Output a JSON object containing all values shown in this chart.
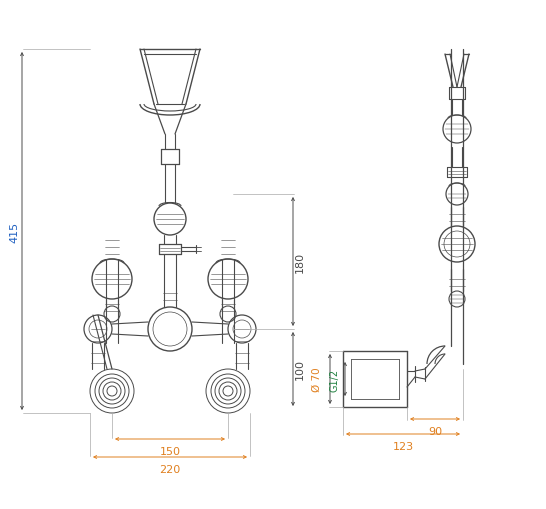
{
  "bg_color": "#ffffff",
  "line_color": "#4a4a4a",
  "dim_color_orange": "#e08020",
  "dim_color_blue": "#2060c0",
  "dim_color_green": "#208040",
  "fig_width": 5.46,
  "fig_height": 5.1,
  "dpi": 100,
  "dim_415": "415",
  "dim_180": "180",
  "dim_100": "100",
  "dim_150": "150",
  "dim_220": "220",
  "dim_70": "Ø 70",
  "dim_g12": "G1/2",
  "dim_90": "90",
  "dim_123": "123"
}
